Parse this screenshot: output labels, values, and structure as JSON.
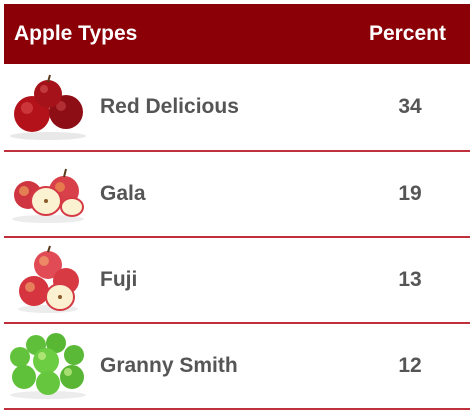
{
  "header": {
    "col_type": "Apple Types",
    "col_percent": "Percent"
  },
  "rows": [
    {
      "name": "Red Delicious",
      "percent": "34",
      "icon": "red-delicious-apples-image"
    },
    {
      "name": "Gala",
      "percent": "19",
      "icon": "gala-apples-image"
    },
    {
      "name": "Fuji",
      "percent": "13",
      "icon": "fuji-apples-image"
    },
    {
      "name": "Granny Smith",
      "percent": "12",
      "icon": "granny-smith-apples-image"
    }
  ],
  "colors": {
    "header_bg": "#8b0007",
    "divider": "#c0303a",
    "text": "#555555"
  }
}
